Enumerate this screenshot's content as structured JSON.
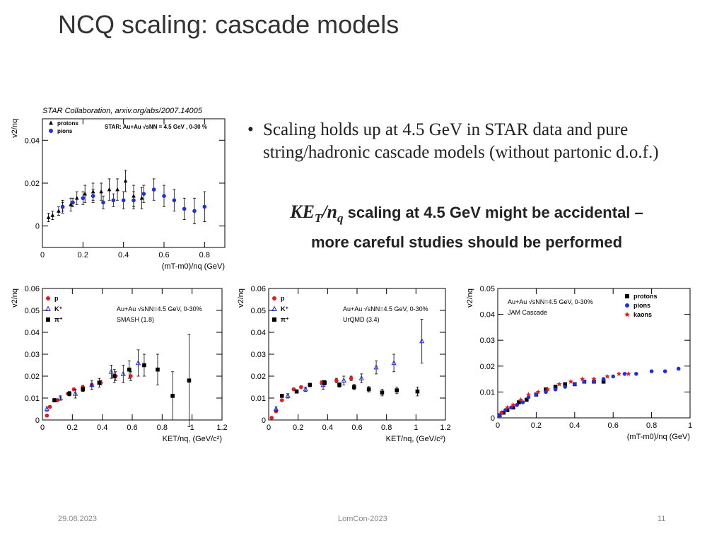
{
  "slide": {
    "title": "NCQ scaling:  cascade models",
    "citation": "STAR Collaboration, arxiv.org/abs/2007.14005",
    "bullet": "Scaling holds up at 4.5 GeV in STAR data and pure string/hadronic cascade models (without partonic d.o.f.)",
    "callout_math": {
      "base": "KE",
      "sub1": "T",
      "slash": "/n",
      "sub2": "q"
    },
    "callout_line1": " scaling at 4.5 GeV might be accidental –",
    "callout_line2": "more careful studies should be performed",
    "footer_date": "29.08.2023",
    "footer_conf": "LomCon-2023",
    "footer_page": "11"
  },
  "colors": {
    "protons": "#000000",
    "pions": "#1f2fe0",
    "kaons": "#e41a1c",
    "red": "#e41a1c",
    "black": "#000000",
    "blue": "#1f2fe0"
  },
  "chart_data": [
    {
      "id": "star",
      "type": "scatter",
      "ylabel": "v2/nq",
      "xlabel": "(mT-m0)/nq (GeV)",
      "annotation": "STAR: Au+Au √sNN = 4.5 GeV , 0-30 %",
      "xlim": [
        0,
        0.9
      ],
      "ylim": [
        -0.01,
        0.05
      ],
      "xticks": [
        0,
        0.2,
        0.4,
        0.6,
        0.8
      ],
      "xtick_labels": [
        "0",
        "0.2",
        "0.4",
        "0.6",
        "0.8"
      ],
      "yticks": [
        0,
        0.02,
        0.04
      ],
      "ytick_labels": [
        "0",
        "0.02",
        "0.04"
      ],
      "legend_position": "top-left",
      "series": [
        {
          "name": "protons",
          "marker": "triangle",
          "color": "#000000",
          "x": [
            0.03,
            0.05,
            0.08,
            0.1,
            0.14,
            0.17,
            0.21,
            0.25,
            0.29,
            0.33,
            0.37,
            0.41,
            0.45,
            0.49
          ],
          "y": [
            0.004,
            0.005,
            0.007,
            0.009,
            0.01,
            0.013,
            0.015,
            0.016,
            0.016,
            0.017,
            0.017,
            0.021,
            0.014,
            0.013
          ],
          "err": [
            0.002,
            0.002,
            0.002,
            0.003,
            0.003,
            0.003,
            0.004,
            0.004,
            0.004,
            0.005,
            0.005,
            0.005,
            0.005,
            0.005
          ]
        },
        {
          "name": "pions",
          "marker": "circle",
          "color": "#1f2fe0",
          "x": [
            0.1,
            0.15,
            0.2,
            0.25,
            0.3,
            0.35,
            0.4,
            0.45,
            0.5,
            0.55,
            0.6,
            0.65,
            0.7,
            0.75,
            0.8
          ],
          "y": [
            0.009,
            0.011,
            0.013,
            0.014,
            0.011,
            0.012,
            0.012,
            0.012,
            0.015,
            0.017,
            0.014,
            0.012,
            0.008,
            0.007,
            0.009
          ],
          "err": [
            0.002,
            0.002,
            0.003,
            0.003,
            0.003,
            0.003,
            0.004,
            0.004,
            0.004,
            0.005,
            0.005,
            0.005,
            0.005,
            0.006,
            0.007
          ]
        }
      ]
    },
    {
      "id": "smash",
      "type": "scatter",
      "ylabel": "v2/nq",
      "xlabel": "KET/nq,  (GeV/c²)",
      "annotation_lines": [
        "Au+Au √sNN=4.5 GeV, 0-30%",
        "SMASH (1.8)"
      ],
      "xlim": [
        0,
        1.2
      ],
      "ylim": [
        0,
        0.06
      ],
      "xticks": [
        0,
        0.2,
        0.4,
        0.6,
        0.8,
        1.0,
        1.2
      ],
      "xtick_labels": [
        "0",
        "0.2",
        "0.4",
        "0.6",
        "0.8",
        "1",
        "1.2"
      ],
      "yticks": [
        0,
        0.01,
        0.02,
        0.03,
        0.04,
        0.05,
        0.06
      ],
      "ytick_labels": [
        "0",
        "0.01",
        "0.02",
        "0.03",
        "0.04",
        "0.05",
        "0.06"
      ],
      "legend_position": "top-left",
      "series": [
        {
          "name": "p",
          "marker": "circle",
          "color": "#e41a1c",
          "x": [
            0.03,
            0.05,
            0.1,
            0.17,
            0.21,
            0.27,
            0.33,
            0.39,
            0.49,
            0.59
          ],
          "y": [
            0.002,
            0.006,
            0.009,
            0.012,
            0.014,
            0.015,
            0.016,
            0.017,
            0.02,
            0.02
          ],
          "err": [
            0.0005,
            0.0005,
            0.0005,
            0.0005,
            0.0005,
            0.0008,
            0.0008,
            0.001,
            0.002,
            0.002
          ]
        },
        {
          "name": "K⁺",
          "marker": "open-triangle",
          "color": "#1f2fe0",
          "x": [
            0.03,
            0.12,
            0.22,
            0.33,
            0.46,
            0.54,
            0.64
          ],
          "y": [
            0.005,
            0.01,
            0.012,
            0.016,
            0.022,
            0.021,
            0.026
          ],
          "err": [
            0.001,
            0.001,
            0.002,
            0.002,
            0.003,
            0.004,
            0.006
          ]
        },
        {
          "name": "π⁺",
          "marker": "square",
          "color": "#000000",
          "x": [
            0.08,
            0.18,
            0.27,
            0.38,
            0.48,
            0.58,
            0.68,
            0.77,
            0.87,
            0.98
          ],
          "y": [
            0.009,
            0.012,
            0.014,
            0.017,
            0.02,
            0.023,
            0.025,
            0.023,
            0.011,
            0.018
          ],
          "err": [
            0.0008,
            0.001,
            0.001,
            0.002,
            0.003,
            0.004,
            0.005,
            0.007,
            0.011,
            0.021
          ]
        }
      ]
    },
    {
      "id": "urqmd",
      "type": "scatter",
      "ylabel": "v2/nq",
      "xlabel": "KET/nq,  (GeV/c²)",
      "annotation_lines": [
        "Au+Au √sNN=4.5 GeV, 0-30%",
        "UrQMD (3.4)"
      ],
      "xlim": [
        0,
        1.2
      ],
      "ylim": [
        0,
        0.06
      ],
      "xticks": [
        0,
        0.2,
        0.4,
        0.6,
        0.8,
        1.0,
        1.2
      ],
      "xtick_labels": [
        "0",
        "0.2",
        "0.4",
        "0.6",
        "0.8",
        "1",
        "1.2"
      ],
      "yticks": [
        0,
        0.01,
        0.02,
        0.03,
        0.04,
        0.05,
        0.06
      ],
      "ytick_labels": [
        "0",
        "0.01",
        "0.02",
        "0.03",
        "0.04",
        "0.05",
        "0.06"
      ],
      "legend_position": "top-left",
      "series": [
        {
          "name": "p",
          "marker": "circle",
          "color": "#e41a1c",
          "x": [
            0.02,
            0.05,
            0.09,
            0.17,
            0.22,
            0.28,
            0.36,
            0.46,
            0.56
          ],
          "y": [
            0.001,
            0.004,
            0.009,
            0.014,
            0.015,
            0.016,
            0.017,
            0.018,
            0.019
          ],
          "err": [
            0.0005,
            0.0005,
            0.0005,
            0.0005,
            0.0005,
            0.0008,
            0.0008,
            0.001,
            0.001
          ]
        },
        {
          "name": "K⁺",
          "marker": "open-triangle",
          "color": "#1f2fe0",
          "x": [
            0.05,
            0.13,
            0.25,
            0.37,
            0.51,
            0.63,
            0.73,
            0.85,
            1.04
          ],
          "y": [
            0.005,
            0.011,
            0.014,
            0.016,
            0.018,
            0.019,
            0.024,
            0.026,
            0.036
          ],
          "err": [
            0.001,
            0.001,
            0.001,
            0.002,
            0.002,
            0.002,
            0.003,
            0.004,
            0.01
          ]
        },
        {
          "name": "π⁺",
          "marker": "square",
          "color": "#000000",
          "x": [
            0.09,
            0.19,
            0.28,
            0.38,
            0.48,
            0.58,
            0.68,
            0.77,
            0.87,
            1.01
          ],
          "y": [
            0.011,
            0.013,
            0.016,
            0.017,
            0.016,
            0.015,
            0.014,
            0.0125,
            0.0135,
            0.013
          ],
          "err": [
            0.0005,
            0.0008,
            0.0008,
            0.001,
            0.001,
            0.0012,
            0.0012,
            0.0015,
            0.0015,
            0.002
          ]
        }
      ]
    },
    {
      "id": "jam",
      "type": "scatter",
      "ylabel": "v2/nq",
      "xlabel": "(mT-m0)/nq (GeV)",
      "annotation_lines": [
        "Au+Au √sNN=4.5 GeV, 0-30%",
        "JAM Cascade"
      ],
      "xlim": [
        0,
        1
      ],
      "ylim": [
        0,
        0.05
      ],
      "xticks": [
        0,
        0.2,
        0.4,
        0.6,
        0.8,
        1.0
      ],
      "xtick_labels": [
        "0",
        "0.2",
        "0.4",
        "0.6",
        "0.8",
        "1"
      ],
      "yticks": [
        0,
        0.01,
        0.02,
        0.03,
        0.04,
        0.05
      ],
      "ytick_labels": [
        "0",
        "0.01",
        "0.02",
        "0.03",
        "0.04",
        "0.05"
      ],
      "legend_position": "top-right",
      "series": [
        {
          "name": "protons",
          "marker": "square",
          "color": "#000000",
          "x": [
            0.01,
            0.03,
            0.05,
            0.08,
            0.11,
            0.15,
            0.2,
            0.25,
            0.3,
            0.35,
            0.4,
            0.45,
            0.5,
            0.55
          ],
          "y": [
            0.001,
            0.002,
            0.003,
            0.004,
            0.006,
            0.007,
            0.009,
            0.011,
            0.012,
            0.013,
            0.013,
            0.014,
            0.014,
            0.014
          ]
        },
        {
          "name": "pions",
          "marker": "circle",
          "color": "#1f2fe0",
          "x": [
            0.01,
            0.02,
            0.04,
            0.07,
            0.1,
            0.13,
            0.16,
            0.2,
            0.25,
            0.3,
            0.35,
            0.4,
            0.45,
            0.5,
            0.55,
            0.6,
            0.66,
            0.72,
            0.8,
            0.87,
            0.94
          ],
          "y": [
            0.001,
            0.002,
            0.003,
            0.004,
            0.005,
            0.006,
            0.008,
            0.009,
            0.01,
            0.011,
            0.012,
            0.013,
            0.014,
            0.014,
            0.015,
            0.016,
            0.017,
            0.017,
            0.018,
            0.018,
            0.019
          ]
        },
        {
          "name": "kaons",
          "marker": "star",
          "color": "#e41a1c",
          "x": [
            0.02,
            0.05,
            0.08,
            0.12,
            0.16,
            0.21,
            0.26,
            0.32,
            0.38,
            0.44,
            0.5,
            0.57,
            0.63,
            0.68
          ],
          "y": [
            0.002,
            0.004,
            0.005,
            0.007,
            0.009,
            0.01,
            0.011,
            0.013,
            0.014,
            0.015,
            0.015,
            0.016,
            0.017,
            0.017
          ]
        }
      ]
    }
  ]
}
